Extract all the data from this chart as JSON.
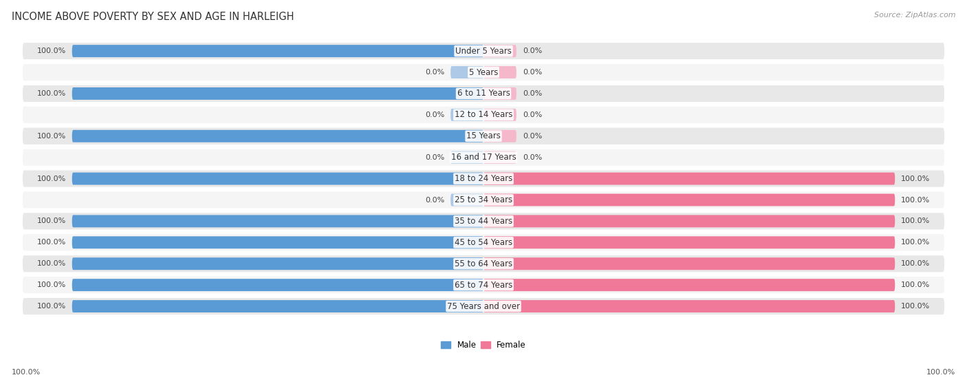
{
  "title": "INCOME ABOVE POVERTY BY SEX AND AGE IN HARLEIGH",
  "source": "Source: ZipAtlas.com",
  "categories": [
    "Under 5 Years",
    "5 Years",
    "6 to 11 Years",
    "12 to 14 Years",
    "15 Years",
    "16 and 17 Years",
    "18 to 24 Years",
    "25 to 34 Years",
    "35 to 44 Years",
    "45 to 54 Years",
    "55 to 64 Years",
    "65 to 74 Years",
    "75 Years and over"
  ],
  "male_values": [
    100.0,
    0.0,
    100.0,
    0.0,
    100.0,
    0.0,
    100.0,
    0.0,
    100.0,
    100.0,
    100.0,
    100.0,
    100.0
  ],
  "female_values": [
    0.0,
    0.0,
    0.0,
    0.0,
    0.0,
    0.0,
    100.0,
    100.0,
    100.0,
    100.0,
    100.0,
    100.0,
    100.0
  ],
  "male_color": "#5b9bd5",
  "female_color": "#f07898",
  "male_light_color": "#aec9e8",
  "female_light_color": "#f5b8cb",
  "row_dark_color": "#e8e8e8",
  "row_light_color": "#f5f5f5",
  "title_fontsize": 10.5,
  "label_fontsize": 8.5,
  "value_fontsize": 8.0,
  "source_fontsize": 8.0
}
